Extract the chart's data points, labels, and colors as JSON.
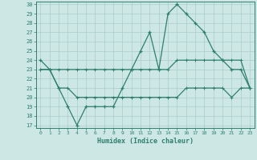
{
  "x": [
    0,
    1,
    2,
    3,
    4,
    5,
    6,
    7,
    8,
    9,
    10,
    11,
    12,
    13,
    14,
    15,
    16,
    17,
    18,
    19,
    20,
    21,
    22,
    23
  ],
  "y_main": [
    24,
    23,
    21,
    19,
    17,
    19,
    19,
    19,
    19,
    21,
    23,
    25,
    27,
    23,
    29,
    30,
    29,
    28,
    27,
    25,
    24,
    23,
    23,
    21
  ],
  "y_upper": [
    23,
    23,
    23,
    23,
    23,
    23,
    23,
    23,
    23,
    23,
    23,
    23,
    23,
    23,
    23,
    24,
    24,
    24,
    24,
    24,
    24,
    24,
    24,
    21
  ],
  "y_lower": [
    23,
    23,
    21,
    21,
    20,
    20,
    20,
    20,
    20,
    20,
    20,
    20,
    20,
    20,
    20,
    20,
    21,
    21,
    21,
    21,
    21,
    20,
    21,
    21
  ],
  "xlabel": "Humidex (Indice chaleur)",
  "ylim": [
    17,
    30
  ],
  "xlim": [
    -0.5,
    23.5
  ],
  "yticks": [
    17,
    18,
    19,
    20,
    21,
    22,
    23,
    24,
    25,
    26,
    27,
    28,
    29,
    30
  ],
  "xticks": [
    0,
    1,
    2,
    3,
    4,
    5,
    6,
    7,
    8,
    9,
    10,
    11,
    12,
    13,
    14,
    15,
    16,
    17,
    18,
    19,
    20,
    21,
    22,
    23
  ],
  "line_color": "#2e7f6e",
  "bg_color": "#cde8e4",
  "grid_color": "#b8d8d4"
}
